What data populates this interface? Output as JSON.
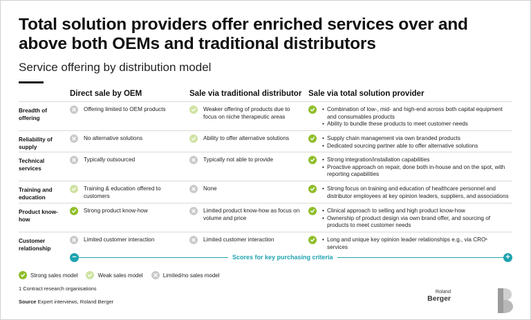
{
  "title": "Total solution providers offer enriched services over and above both OEMs and traditional distributors",
  "subtitle": "Service offering by distribution model",
  "columns": [
    "Direct sale by OEM",
    "Sale via traditional distributor",
    "Sale via total solution provider"
  ],
  "rows": [
    {
      "label": "Breadth of offering",
      "cells": [
        {
          "rating": "none",
          "items": [
            "Offering limited to OEM products"
          ]
        },
        {
          "rating": "weak",
          "items": [
            "Weaker offering of products due to focus on niche therapeutic areas"
          ]
        },
        {
          "rating": "strong",
          "bullets": true,
          "items": [
            "Combination of low-, mid- and high-end across both capital equipment and consumables products",
            "Ability to bundle these products to meet customer needs"
          ]
        }
      ]
    },
    {
      "label": "Reliability of supply",
      "cells": [
        {
          "rating": "none",
          "items": [
            "No alternative solutions"
          ]
        },
        {
          "rating": "weak",
          "items": [
            "Ability to offer alternative solutions"
          ]
        },
        {
          "rating": "strong",
          "bullets": true,
          "items": [
            "Supply chain management via own branded products",
            "Dedicated sourcing partner able to offer alternative solutions"
          ]
        }
      ]
    },
    {
      "label": "Technical services",
      "cells": [
        {
          "rating": "none",
          "items": [
            "Typically outsourced"
          ]
        },
        {
          "rating": "none",
          "items": [
            "Typically not able to provide"
          ]
        },
        {
          "rating": "strong",
          "bullets": true,
          "items": [
            "Strong integration/installation capabilities",
            "Proactive approach on repair, done both in-house and on the spot, with reporting capabilities"
          ]
        }
      ]
    },
    {
      "label": "Training and education",
      "cells": [
        {
          "rating": "weak",
          "items": [
            "Training & education offered to customers"
          ]
        },
        {
          "rating": "none",
          "items": [
            "None"
          ]
        },
        {
          "rating": "strong",
          "bullets": true,
          "items": [
            "Strong focus on training and education of healthcare personnel and distributor employees at key opinion leaders, suppliers, and associations"
          ]
        }
      ]
    },
    {
      "label": "Product know-how",
      "cells": [
        {
          "rating": "strong",
          "items": [
            "Strong product know-how"
          ]
        },
        {
          "rating": "none",
          "items": [
            "Limited product know-how as focus on volume and price"
          ]
        },
        {
          "rating": "strong",
          "bullets": true,
          "items": [
            "Clinical approach to selling and high product know-how",
            "Ownership of product design via own brand offer, and sourcing of products to meet customer needs"
          ]
        }
      ]
    },
    {
      "label": "Customer relationship",
      "cells": [
        {
          "rating": "none",
          "items": [
            "Limited customer interaction"
          ]
        },
        {
          "rating": "none",
          "items": [
            "Limited customer interaction"
          ]
        },
        {
          "rating": "strong",
          "bullets": true,
          "items": [
            "Long and unique key opinion leader relationships e.g., via CRO¹ services"
          ]
        }
      ]
    }
  ],
  "scores_label": "Scores for key purchasing criteria",
  "scores_left_symbol": "−",
  "scores_right_symbol": "+",
  "legend": [
    {
      "rating": "strong",
      "label": "Strong sales model"
    },
    {
      "rating": "weak",
      "label": "Weak sales model"
    },
    {
      "rating": "none",
      "label": "Limited/no sales model"
    }
  ],
  "footnote": "1 Contract research organisations",
  "source_label": "Source",
  "source_text": "Expert interviews, Roland Berger",
  "logo": {
    "line1": "Roland",
    "line2": "Berger"
  },
  "colors": {
    "strong": "#8fbe2a",
    "weak": "#cfe3a2",
    "none": "#c9c9c9",
    "accent": "#1fa3b0"
  }
}
